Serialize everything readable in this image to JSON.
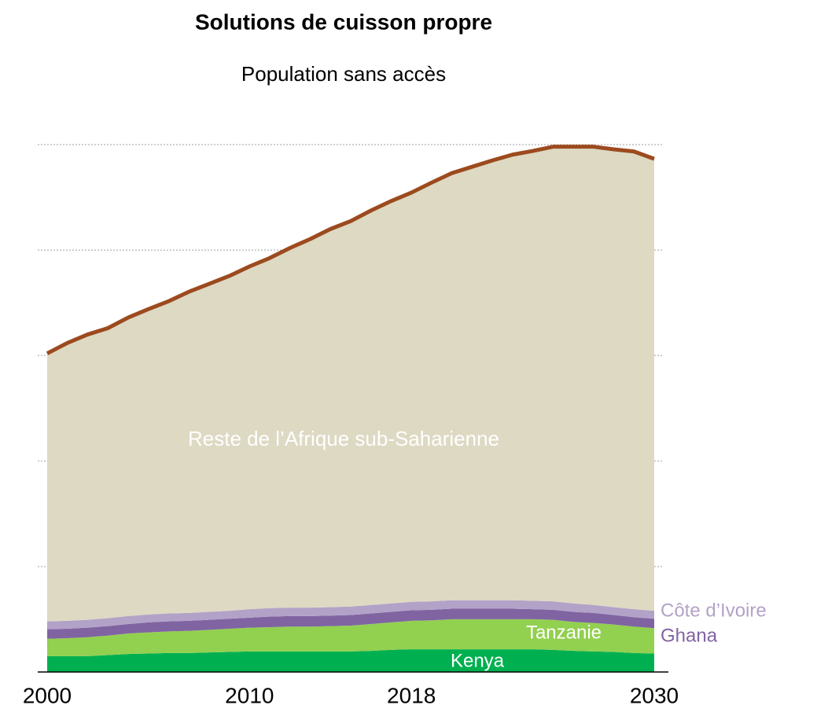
{
  "chart_data": {
    "type": "stacked_area",
    "title": "Solutions de cuisson propre",
    "subtitle": "Population sans accès",
    "x": [
      2000,
      2001,
      2002,
      2003,
      2004,
      2005,
      2006,
      2007,
      2008,
      2009,
      2010,
      2011,
      2012,
      2013,
      2014,
      2015,
      2016,
      2017,
      2018,
      2019,
      2020,
      2021,
      2022,
      2023,
      2024,
      2025,
      2026,
      2027,
      2028,
      2029,
      2030
    ],
    "xlim": [
      2000,
      2030
    ],
    "xticks": [
      2000,
      2010,
      2018,
      2030
    ],
    "ylim": [
      0,
      1000
    ],
    "yticks": [
      200,
      400,
      600,
      800,
      1000
    ],
    "grid": true,
    "outline_color": "#9c4a1e",
    "series": [
      {
        "name": "Kenya",
        "color": "#00b050",
        "values": [
          30,
          30,
          30,
          32,
          34,
          35,
          36,
          36,
          37,
          38,
          39,
          39,
          39,
          39,
          39,
          39,
          40,
          42,
          43,
          43,
          43,
          43,
          43,
          43,
          43,
          42,
          40,
          39,
          38,
          36,
          35
        ]
      },
      {
        "name": "Tanzanie",
        "color": "#92d050",
        "values": [
          33,
          34,
          36,
          37,
          39,
          40,
          41,
          42,
          43,
          44,
          45,
          46,
          47,
          47,
          48,
          49,
          51,
          52,
          54,
          55,
          57,
          57,
          57,
          57,
          57,
          57,
          55,
          54,
          52,
          50,
          48
        ]
      },
      {
        "name": "Ghana",
        "color": "#8064a2",
        "values": [
          18,
          18,
          18,
          18,
          18,
          19,
          19,
          19,
          19,
          19,
          19,
          20,
          20,
          20,
          20,
          20,
          20,
          20,
          20,
          20,
          20,
          20,
          20,
          20,
          19,
          19,
          19,
          19,
          18,
          18,
          18
        ]
      },
      {
        "name": "Côte d’Ivoire",
        "color": "#b3a2c7",
        "values": [
          15,
          15,
          15,
          15,
          15,
          15,
          15,
          15,
          15,
          15,
          16,
          16,
          16,
          16,
          16,
          16,
          16,
          16,
          16,
          16,
          16,
          16,
          16,
          16,
          16,
          16,
          16,
          15,
          15,
          15,
          15
        ]
      },
      {
        "name": "Reste de l’Afrique sub-Saharienne",
        "color": "#ddd9c3",
        "values": [
          508,
          527,
          541,
          550,
          566,
          579,
          592,
          609,
          622,
          635,
          650,
          664,
          682,
          699,
          717,
          731,
          748,
          763,
          776,
          794,
          810,
          822,
          834,
          845,
          853,
          862,
          866,
          869,
          868,
          868,
          857
        ]
      }
    ]
  }
}
